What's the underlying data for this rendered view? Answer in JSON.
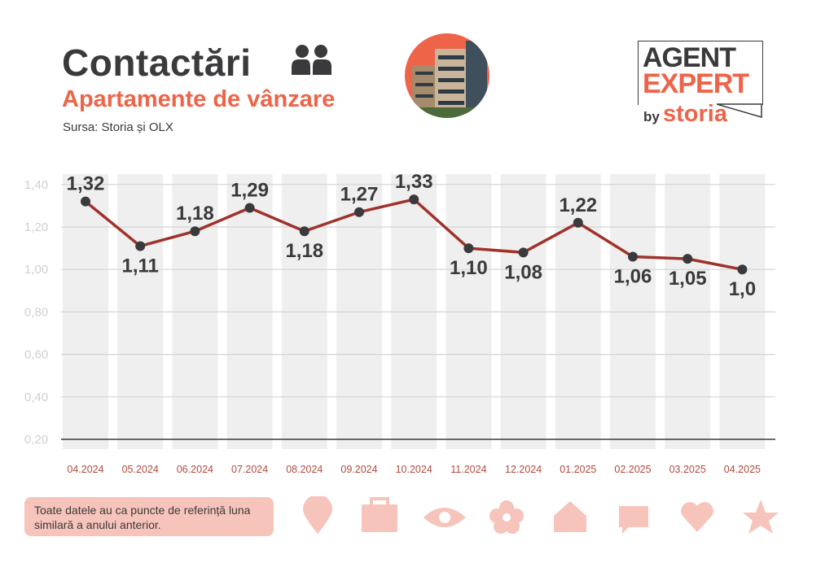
{
  "header": {
    "title": "Contactări",
    "subtitle": "Apartamente de vânzare",
    "source": "Sursa: Storia și OLX"
  },
  "logo": {
    "line1": "AGENT",
    "line2": "EXPERT",
    "by": "by",
    "brand": "storia"
  },
  "note": "Toate datele au ca puncte de referință luna similară a anului anterior.",
  "colors": {
    "accent": "#ee6449",
    "line": "#a0322b",
    "dark": "#3a3a3c",
    "stripe": "#efefef",
    "icon": "#f7c4bb"
  },
  "footer_icons": [
    "pin-icon",
    "briefcase-icon",
    "eye-icon",
    "flower-icon",
    "house-icon",
    "chat-icon",
    "heart-icon",
    "star-icon"
  ],
  "chart_data": {
    "type": "line",
    "title": "Contactări",
    "xlabel": "",
    "ylabel": "",
    "categories": [
      "04.2024",
      "05.2024",
      "06.2024",
      "07.2024",
      "08.2024",
      "09.2024",
      "10.2024",
      "11.2024",
      "12.2024",
      "01.2025",
      "02.2025",
      "03.2025",
      "04.2025"
    ],
    "values": [
      1.32,
      1.11,
      1.18,
      1.29,
      1.18,
      1.27,
      1.33,
      1.1,
      1.08,
      1.22,
      1.06,
      1.05,
      1.0
    ],
    "data_labels": [
      "1,32",
      "1,11",
      "1,18",
      "1,29",
      "1,18",
      "1,27",
      "1,33",
      "1,10",
      "1,08",
      "1,22",
      "1,06",
      "1,05",
      "1,0"
    ],
    "yticks": [
      "0,20",
      "0,40",
      "0,60",
      "0,80",
      "1,00",
      "1,20",
      "1,40"
    ],
    "ytick_values": [
      0.2,
      0.4,
      0.6,
      0.8,
      1.0,
      1.2,
      1.4
    ],
    "ylim": [
      0.2,
      1.45
    ],
    "grid": true
  }
}
